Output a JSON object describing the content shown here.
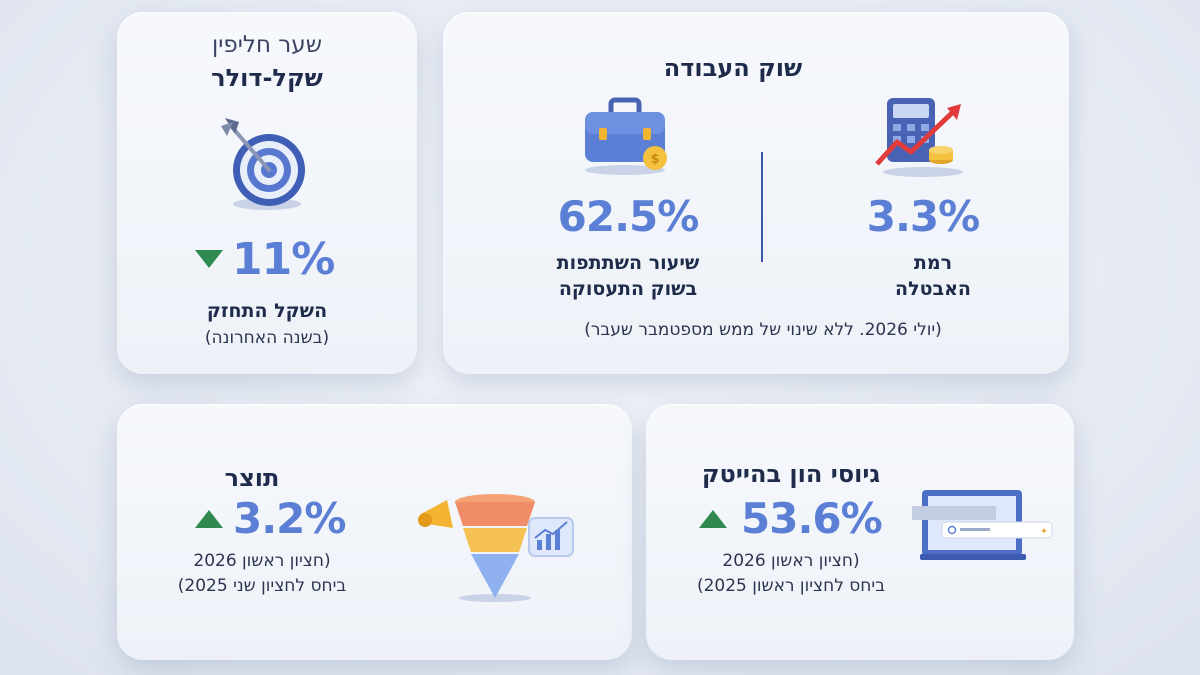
{
  "colors": {
    "accent": "#5b7fd4",
    "text": "#1e2b4a",
    "up_down_arrow": "#2f8a4f",
    "background": "#e8ecf4"
  },
  "exchange_card": {
    "title_line1": "שער חליפין",
    "title_line2": "שקל-דולר",
    "icon": "target-icon",
    "value": "11%",
    "direction": "down",
    "label": "השקל התחזק",
    "sublabel": "(בשנה האחרונה)"
  },
  "labor_card": {
    "title": "שוק העבודה",
    "participation": {
      "icon": "briefcase-icon",
      "value": "62.5%",
      "label_line1": "שיעור השתתפות",
      "label_line2": "בשוק התעסוקה"
    },
    "unemployment": {
      "icon": "calculator-chart-icon",
      "value": "3.3%",
      "label_line1": "רמת",
      "label_line2": "האבטלה"
    },
    "footnote": "(יולי 2026. ללא שינוי של ממש מספטמבר שעבר)"
  },
  "product_card": {
    "title": "תוצר",
    "icon": "funnel-megaphone-icon",
    "value": "3.2%",
    "direction": "up",
    "note_line1": "(חציון ראשון 2026",
    "note_line2": "ביחס לחציון שני 2025)"
  },
  "hitech_card": {
    "title": "גיוסי הון בהייטק",
    "icon": "laptop-search-icon",
    "value": "53.6%",
    "direction": "up",
    "note_line1": "(חציון ראשון 2026",
    "note_line2": "ביחס לחציון ראשון 2025)"
  }
}
